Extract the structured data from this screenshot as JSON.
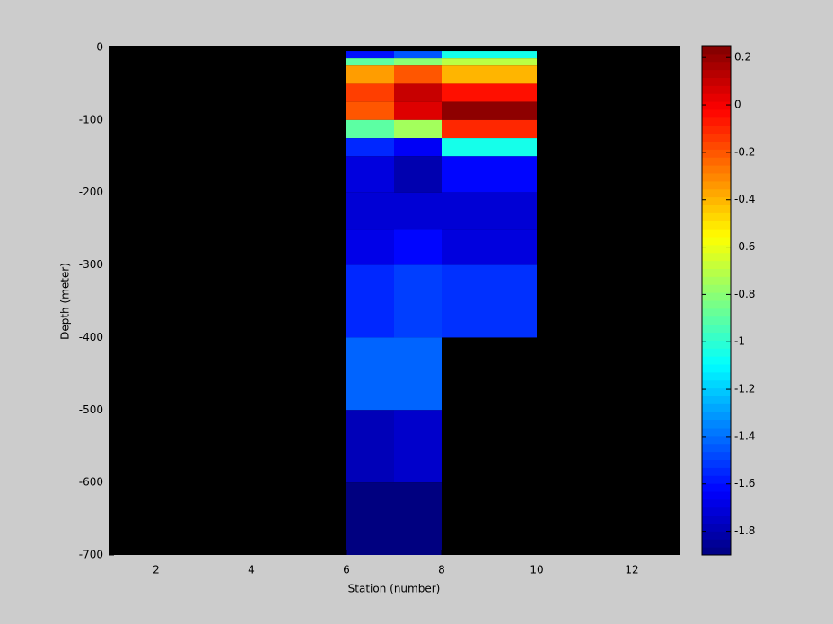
{
  "chart_data": {
    "type": "heatmap",
    "xlabel": "Station (number)",
    "ylabel": "Depth (meter)",
    "xlim": [
      1,
      13
    ],
    "xticks": [
      2,
      4,
      6,
      8,
      10,
      12
    ],
    "ylim": [
      -700,
      0
    ],
    "yticks": [
      -700,
      -600,
      -500,
      -400,
      -300,
      -200,
      -100,
      0
    ],
    "x_edges": [
      6,
      7,
      8,
      10
    ],
    "y_edges": [
      -5,
      -15,
      -25,
      -50,
      -75,
      -100,
      -125,
      -150,
      -200,
      -250,
      -300,
      -400,
      -500,
      -600,
      -700
    ],
    "values": [
      [
        -1.6,
        -1.45,
        -1.05
      ],
      [
        -0.9,
        -0.8,
        -0.7
      ],
      [
        -0.35,
        -0.2,
        -0.4
      ],
      [
        -0.15,
        0.1,
        -0.05
      ],
      [
        -0.2,
        0.05,
        0.22
      ],
      [
        -0.9,
        -0.75,
        -0.1
      ],
      [
        -1.55,
        -1.65,
        -1.05
      ],
      [
        -1.7,
        -1.8,
        -1.62
      ],
      [
        -1.72,
        -1.72,
        -1.72
      ],
      [
        -1.68,
        -1.62,
        -1.7
      ],
      [
        -1.55,
        -1.5,
        -1.53
      ],
      [
        -1.42,
        -1.42,
        null
      ],
      [
        -1.78,
        -1.74,
        null
      ],
      [
        -1.9,
        -1.9,
        null
      ]
    ],
    "colormap": "jet",
    "clim": [
      -1.9,
      0.25
    ],
    "colorbar_ticks": [
      -1.8,
      -1.6,
      -1.4,
      -1.2,
      -1,
      -0.8,
      -0.6,
      -0.4,
      -0.2,
      0,
      0.2
    ],
    "background_color": "#000000"
  }
}
